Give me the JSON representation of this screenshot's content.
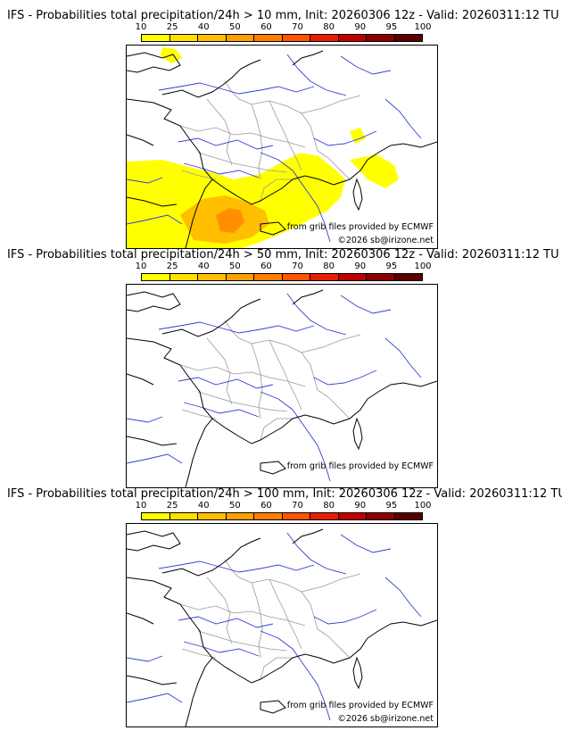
{
  "scale": {
    "ticks": [
      "10",
      "25",
      "40",
      "50",
      "60",
      "70",
      "80",
      "90",
      "95",
      "100"
    ],
    "colors": [
      "#ffff00",
      "#ffe100",
      "#ffbf00",
      "#ffa000",
      "#ff7f00",
      "#ff5500",
      "#e61e00",
      "#c00000",
      "#8b0000",
      "#5a0000"
    ]
  },
  "panels": [
    {
      "title": "IFS - Probabilities total precipitation/24h > 10 mm, Init: 20260306 12z - Valid: 20260311:12 TU",
      "credit_source": "from grib files provided by ECMWF",
      "credit_copyright": "©2026 sb@irizone.net",
      "precip_max_probability_percent": 70
    },
    {
      "title": "IFS - Probabilities total precipitation/24h > 50 mm, Init: 20260306 12z - Valid: 20260311:12 TU",
      "credit_source": "from grib files provided by ECMWF",
      "credit_copyright": "",
      "precip_max_probability_percent": 0
    },
    {
      "title": "IFS - Probabilities total precipitation/24h > 100 mm, Init: 20260306 12z - Valid: 20260311:12 TU",
      "credit_source": "from grib files provided by ECMWF",
      "credit_copyright": "©2026 sb@irizone.net",
      "precip_max_probability_percent": 0
    }
  ],
  "map_colors": {
    "coast": "#000000",
    "borders": "#999999",
    "rivers": "#2f3fd0"
  }
}
